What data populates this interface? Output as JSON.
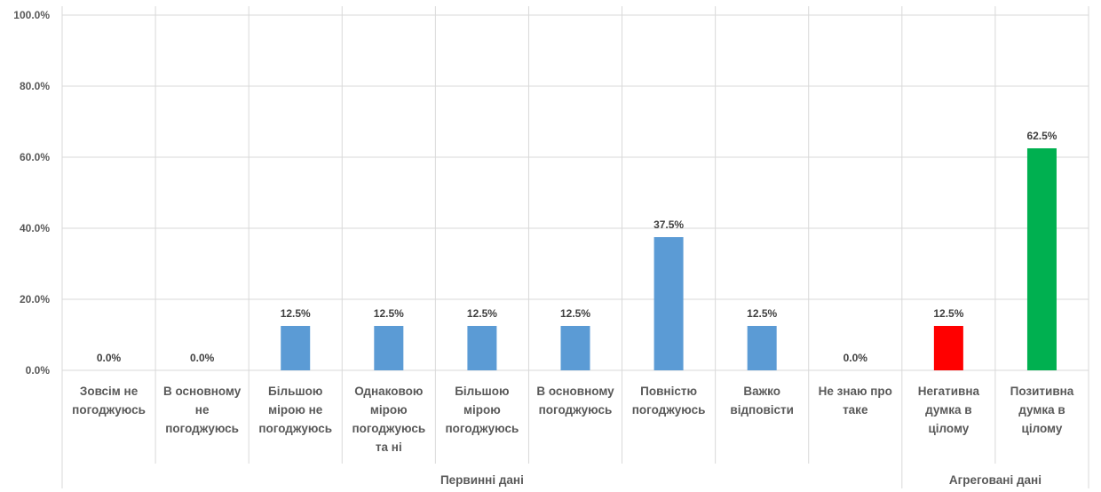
{
  "chart_data": {
    "type": "bar",
    "ylim": [
      0,
      100
    ],
    "y_ticks": [
      0,
      20,
      40,
      60,
      80,
      100
    ],
    "y_tick_labels": [
      "0.0%",
      "20.0%",
      "40.0%",
      "60.0%",
      "80.0%",
      "100.0%"
    ],
    "grid": true,
    "legend": "none",
    "categories": [
      [
        "Зовсім не",
        "погоджуюсь"
      ],
      [
        "В основному",
        "не",
        "погоджуюсь"
      ],
      [
        "Більшою",
        "мірою не",
        "погоджуюсь"
      ],
      [
        "Однаковою",
        "мірою",
        "погоджуюсь",
        "та ні"
      ],
      [
        "Більшою",
        "мірою",
        "погоджуюсь"
      ],
      [
        "В основному",
        "погоджуюсь"
      ],
      [
        "Повністю",
        "погоджуюсь"
      ],
      [
        "Важко",
        "відповісти"
      ],
      [
        "Не знаю про",
        "таке"
      ],
      [
        "Негативна",
        "думка в",
        "цілому"
      ],
      [
        "Позитивна",
        "думка в",
        "цілому"
      ]
    ],
    "values": [
      0.0,
      0.0,
      12.5,
      12.5,
      12.5,
      12.5,
      37.5,
      12.5,
      0.0,
      12.5,
      62.5
    ],
    "data_labels": [
      "0.0%",
      "0.0%",
      "12.5%",
      "12.5%",
      "12.5%",
      "12.5%",
      "37.5%",
      "12.5%",
      "0.0%",
      "12.5%",
      "62.5%"
    ],
    "bar_colors": [
      "#5b9bd5",
      "#5b9bd5",
      "#5b9bd5",
      "#5b9bd5",
      "#5b9bd5",
      "#5b9bd5",
      "#5b9bd5",
      "#5b9bd5",
      "#5b9bd5",
      "#ff0000",
      "#00b050"
    ],
    "category_groups": [
      {
        "label": "Первинні дані",
        "start": 0,
        "end": 8
      },
      {
        "label": "Агреговані дані",
        "start": 9,
        "end": 10
      }
    ]
  },
  "colors": {
    "grid": "#d9d9d9",
    "text": "#595959",
    "label": "#404040"
  }
}
